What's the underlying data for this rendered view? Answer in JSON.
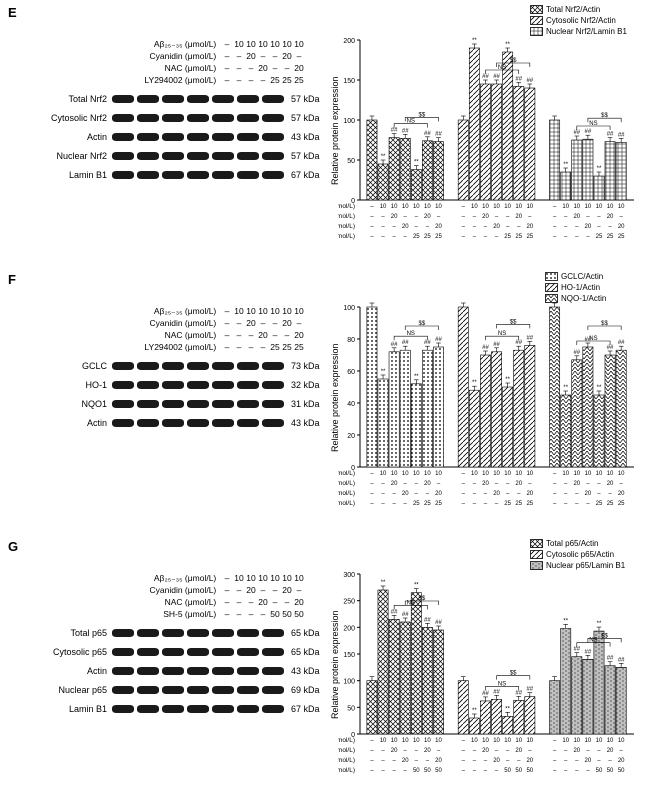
{
  "panels": {
    "E": {
      "label": "E",
      "treatments": {
        "labels": [
          "Aβ₂₅₋₃₅ (μmol/L)",
          "Cyanidin (μmol/L)",
          "NAC (μmol/L)",
          "LY294002 (μmol/L)"
        ],
        "cols": [
          [
            "–",
            "–",
            "–",
            "–"
          ],
          [
            "10",
            "–",
            "–",
            "–"
          ],
          [
            "10",
            "20",
            "–",
            "–"
          ],
          [
            "10",
            "–",
            "20",
            "–"
          ],
          [
            "10",
            "–",
            "–",
            "25"
          ],
          [
            "10",
            "20",
            "–",
            "25"
          ],
          [
            "10",
            "–",
            "20",
            "25"
          ]
        ]
      },
      "western": [
        {
          "name": "Total Nrf2",
          "kda": "57 kDa"
        },
        {
          "name": "Cytosolic Nrf2",
          "kda": "57 kDa"
        },
        {
          "name": "Actin",
          "kda": "43 kDa"
        },
        {
          "name": "Nuclear Nrf2",
          "kda": "57 kDa"
        },
        {
          "name": "Lamin B1",
          "kda": "67 kDa"
        }
      ],
      "chart": {
        "ylabel": "Relative protein expression",
        "ymax": 200,
        "ytick": 50,
        "legend": [
          "Total Nrf2/Actin",
          "Cytosolic Nrf2/Actin",
          "Nuclear Nrf2/Lamin B1"
        ],
        "patterns": [
          "crosshatch",
          "diag",
          "grid"
        ],
        "groups": [
          {
            "values": [
              100,
              45,
              78,
              77,
              38,
              74,
              73
            ],
            "sig": [
              "",
              "**",
              "##",
              "##",
              "**",
              "##",
              "##"
            ],
            "brackets": [
              {
                "a": 2,
                "b": 5,
                "txt": "NS"
              },
              {
                "a": 3,
                "b": 6,
                "txt": "$$"
              }
            ]
          },
          {
            "values": [
              100,
              190,
              145,
              145,
              185,
              142,
              140
            ],
            "sig": [
              "",
              "**",
              "##",
              "##",
              "**",
              "##",
              "##"
            ],
            "brackets": [
              {
                "a": 2,
                "b": 5,
                "txt": "NS"
              },
              {
                "a": 3,
                "b": 6,
                "txt": "$$"
              }
            ]
          },
          {
            "values": [
              100,
              35,
              75,
              76,
              30,
              73,
              72
            ],
            "sig": [
              "",
              "**",
              "##",
              "##",
              "**",
              "##",
              "##"
            ],
            "brackets": [
              {
                "a": 2,
                "b": 5,
                "txt": "NS"
              },
              {
                "a": 3,
                "b": 6,
                "txt": "$$"
              }
            ]
          }
        ]
      }
    },
    "F": {
      "label": "F",
      "treatments": {
        "labels": [
          "Aβ₂₅₋₃₅ (μmol/L)",
          "Cyanidin (μmol/L)",
          "NAC (μmol/L)",
          "LY294002 (μmol/L)"
        ],
        "cols": [
          [
            "–",
            "–",
            "–",
            "–"
          ],
          [
            "10",
            "–",
            "–",
            "–"
          ],
          [
            "10",
            "20",
            "–",
            "–"
          ],
          [
            "10",
            "–",
            "20",
            "–"
          ],
          [
            "10",
            "–",
            "–",
            "25"
          ],
          [
            "10",
            "20",
            "–",
            "25"
          ],
          [
            "10",
            "–",
            "20",
            "25"
          ]
        ]
      },
      "western": [
        {
          "name": "GCLC",
          "kda": "73 kDa"
        },
        {
          "name": "HO-1",
          "kda": "32 kDa"
        },
        {
          "name": "NQO1",
          "kda": "31 kDa"
        },
        {
          "name": "Actin",
          "kda": "43 kDa"
        }
      ],
      "chart": {
        "ylabel": "Relative protein expression",
        "ymax": 100,
        "ytick": 20,
        "legend": [
          "GCLC/Actin",
          "HO-1/Actin",
          "NQO-1/Actin"
        ],
        "patterns": [
          "dots",
          "diag",
          "zigzag"
        ],
        "groups": [
          {
            "values": [
              100,
              55,
              72,
              73,
              52,
              73,
              75
            ],
            "sig": [
              "",
              "**",
              "##",
              "##",
              "**",
              "##",
              "##"
            ],
            "brackets": [
              {
                "a": 2,
                "b": 5,
                "txt": "NS"
              },
              {
                "a": 3,
                "b": 6,
                "txt": "$$"
              }
            ]
          },
          {
            "values": [
              100,
              48,
              70,
              72,
              50,
              73,
              76
            ],
            "sig": [
              "",
              "**",
              "##",
              "##",
              "**",
              "##",
              "##"
            ],
            "brackets": [
              {
                "a": 2,
                "b": 5,
                "txt": "NS"
              },
              {
                "a": 3,
                "b": 6,
                "txt": "$$"
              }
            ]
          },
          {
            "values": [
              100,
              45,
              67,
              75,
              45,
              70,
              73
            ],
            "sig": [
              "",
              "**",
              "##",
              "##",
              "**",
              "##",
              "##"
            ],
            "brackets": [
              {
                "a": 2,
                "b": 5,
                "txt": "NS"
              },
              {
                "a": 3,
                "b": 6,
                "txt": "$$"
              }
            ]
          }
        ]
      }
    },
    "G": {
      "label": "G",
      "treatments": {
        "labels": [
          "Aβ₂₅₋₃₅ (μmol/L)",
          "Cyanidin (μmol/L)",
          "NAC (μmol/L)",
          "SH-5 (μmol/L)"
        ],
        "cols": [
          [
            "–",
            "–",
            "–",
            "–"
          ],
          [
            "10",
            "–",
            "–",
            "–"
          ],
          [
            "10",
            "20",
            "–",
            "–"
          ],
          [
            "10",
            "–",
            "20",
            "–"
          ],
          [
            "10",
            "–",
            "–",
            "50"
          ],
          [
            "10",
            "20",
            "–",
            "50"
          ],
          [
            "10",
            "–",
            "20",
            "50"
          ]
        ]
      },
      "western": [
        {
          "name": "Total p65",
          "kda": "65 kDa"
        },
        {
          "name": "Cytosolic p65",
          "kda": "65 kDa"
        },
        {
          "name": "Actin",
          "kda": "43 kDa"
        },
        {
          "name": "Nuclear p65",
          "kda": "69 kDa"
        },
        {
          "name": "Lamin B1",
          "kda": "67 kDa"
        }
      ],
      "chart": {
        "ylabel": "Relative protein expression",
        "ymax": 300,
        "ytick": 50,
        "legend": [
          "Total p65/Actin",
          "Cytosolic p65/Actin",
          "Nuclear p65/Lamin B1"
        ],
        "patterns": [
          "crosshatch",
          "diag",
          "brick"
        ],
        "groups": [
          {
            "values": [
              100,
              270,
              215,
              210,
              265,
              200,
              195
            ],
            "sig": [
              "",
              "**",
              "##",
              "##",
              "**",
              "##",
              "##"
            ],
            "brackets": [
              {
                "a": 2,
                "b": 5,
                "txt": "NS"
              },
              {
                "a": 3,
                "b": 6,
                "txt": "$$"
              }
            ]
          },
          {
            "values": [
              100,
              30,
              62,
              65,
              33,
              63,
              70
            ],
            "sig": [
              "",
              "**",
              "##",
              "##",
              "**",
              "##",
              "##"
            ],
            "brackets": [
              {
                "a": 2,
                "b": 5,
                "txt": "NS"
              },
              {
                "a": 3,
                "b": 6,
                "txt": "$$"
              }
            ]
          },
          {
            "values": [
              100,
              198,
              145,
              140,
              193,
              128,
              125
            ],
            "sig": [
              "",
              "**",
              "##",
              "##",
              "**",
              "##",
              "##"
            ],
            "brackets": [
              {
                "a": 2,
                "b": 5,
                "txt": "NS"
              },
              {
                "a": 3,
                "b": 6,
                "txt": "$$"
              }
            ]
          }
        ]
      }
    }
  },
  "colors": {
    "stroke": "#000000",
    "bg": "#ffffff"
  }
}
